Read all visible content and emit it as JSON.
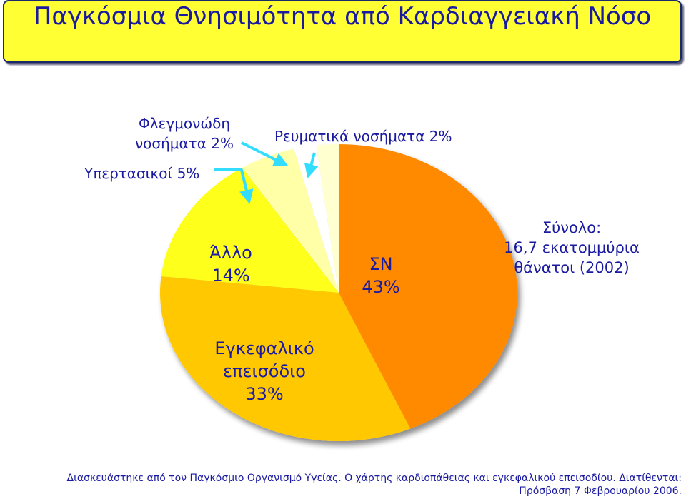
{
  "chart_data": {
    "type": "pie",
    "title": "Παγκόσμια Θνησιμότητα από Καρδιαγγειακή Νόσο",
    "slices": [
      {
        "label_lines": [
          "ΣΝ",
          "43%"
        ],
        "value": 43,
        "color": "#ff8a00"
      },
      {
        "label_lines": [
          "Εγκεφαλικό",
          "επεισόδιο",
          "33%"
        ],
        "value": 33,
        "color": "#ffc800"
      },
      {
        "label_lines": [
          "Άλλο",
          "14%"
        ],
        "value": 14,
        "color": "#ffff1a"
      },
      {
        "label_lines": [
          "Υπερτασικοί 5%"
        ],
        "value": 5,
        "color": "#ffffa8"
      },
      {
        "label_lines": [
          "Φλεγμονώδη",
          "νοσήματα 2%"
        ],
        "value": 2,
        "color": "#ffffff"
      },
      {
        "label_lines": [
          "Ρευματικά νοσήματα 2%"
        ],
        "value": 2,
        "color": "#ffffd0"
      }
    ],
    "total_lines": [
      "Σύνολο:",
      "16,7 εκατομμύρια",
      "θάνατοι (2002)"
    ]
  },
  "source": {
    "line1": "Διασκευάστηκε από τον Παγκόσμιο Οργανισμό Υγείας. Ο χάρτης καρδιοπάθειας και εγκεφαλικού επεισοδίου. Διατίθενται:",
    "line2": "Πρόσβαση 7 Φεβρουαρίου 2006."
  },
  "colors": {
    "arrow": "#33ddff",
    "text": "#1a1aa0"
  }
}
